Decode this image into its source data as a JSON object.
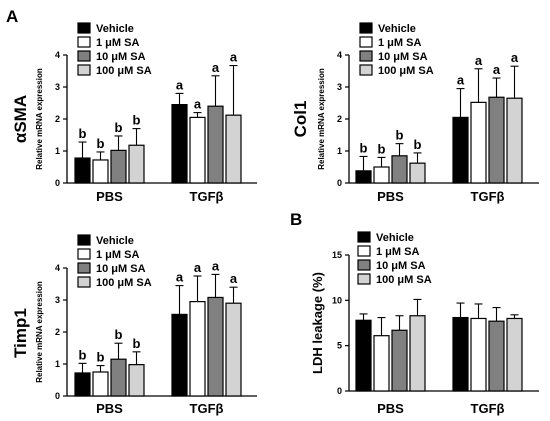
{
  "panel_labels": [
    "A",
    "B"
  ],
  "legend": {
    "items": [
      {
        "label": "Vehicle",
        "color": "#000000"
      },
      {
        "label": "1 μM SA",
        "color": "#ffffff"
      },
      {
        "label": "10 μM SA",
        "color": "#808080"
      },
      {
        "label": "100 μM SA",
        "color": "#d3d3d3"
      }
    ]
  },
  "chart_data": [
    {
      "panel": "A",
      "type": "bar",
      "gene_label": "αSMA",
      "ylabel": "Relative mRNA expression",
      "ylim": [
        0,
        4
      ],
      "yticks": [
        "0",
        "1",
        "2",
        "3",
        "4"
      ],
      "categories": [
        "PBS",
        "TGFβ"
      ],
      "series": [
        {
          "name": "Vehicle",
          "values": [
            0.78,
            2.45
          ],
          "errors": [
            0.5,
            0.35
          ],
          "sig": [
            "b",
            "a"
          ]
        },
        {
          "name": "1 μM SA",
          "values": [
            0.72,
            2.05
          ],
          "errors": [
            0.25,
            0.15
          ],
          "sig": [
            "b",
            "a"
          ]
        },
        {
          "name": "10 μM SA",
          "values": [
            1.02,
            2.4
          ],
          "errors": [
            0.45,
            0.95
          ],
          "sig": [
            "b",
            "a"
          ]
        },
        {
          "name": "100 μM SA",
          "values": [
            1.18,
            2.12
          ],
          "errors": [
            0.52,
            1.55
          ],
          "sig": [
            "b",
            "a"
          ]
        }
      ]
    },
    {
      "panel": "A",
      "type": "bar",
      "gene_label": "Col1",
      "ylabel": "Relative mRNA expression",
      "ylim": [
        0,
        4
      ],
      "yticks": [
        "0",
        "1",
        "2",
        "3",
        "4"
      ],
      "categories": [
        "PBS",
        "TGFβ"
      ],
      "series": [
        {
          "name": "Vehicle",
          "values": [
            0.38,
            2.05
          ],
          "errors": [
            0.45,
            0.9
          ],
          "sig": [
            "b",
            "a"
          ]
        },
        {
          "name": "1 μM SA",
          "values": [
            0.5,
            2.52
          ],
          "errors": [
            0.3,
            1.05
          ],
          "sig": [
            "b",
            "a"
          ]
        },
        {
          "name": "10 μM SA",
          "values": [
            0.85,
            2.68
          ],
          "errors": [
            0.38,
            0.6
          ],
          "sig": [
            "b",
            "a"
          ]
        },
        {
          "name": "100 μM SA",
          "values": [
            0.62,
            2.65
          ],
          "errors": [
            0.32,
            1.0
          ],
          "sig": [
            "b",
            "a"
          ]
        }
      ]
    },
    {
      "panel": "A",
      "type": "bar",
      "gene_label": "Timp1",
      "ylabel": "Relative mRNA expression",
      "ylim": [
        0,
        4
      ],
      "yticks": [
        "0",
        "1",
        "2",
        "3",
        "4"
      ],
      "categories": [
        "PBS",
        "TGFβ"
      ],
      "series": [
        {
          "name": "Vehicle",
          "values": [
            0.72,
            2.55
          ],
          "errors": [
            0.3,
            0.9
          ],
          "sig": [
            "b",
            "a"
          ]
        },
        {
          "name": "1 μM SA",
          "values": [
            0.75,
            2.95
          ],
          "errors": [
            0.2,
            0.8
          ],
          "sig": [
            "b",
            "a"
          ]
        },
        {
          "name": "10 μM SA",
          "values": [
            1.15,
            3.08
          ],
          "errors": [
            0.5,
            0.72
          ],
          "sig": [
            "b",
            "a"
          ]
        },
        {
          "name": "100 μM SA",
          "values": [
            0.98,
            2.9
          ],
          "errors": [
            0.4,
            0.5
          ],
          "sig": [
            "b",
            "a"
          ]
        }
      ]
    },
    {
      "panel": "B",
      "type": "bar",
      "gene_label": "",
      "ylabel": "LDH leakage (%)",
      "ylim": [
        0,
        15
      ],
      "yticks": [
        "0",
        "5",
        "10",
        "15"
      ],
      "categories": [
        "PBS",
        "TGFβ"
      ],
      "series": [
        {
          "name": "Vehicle",
          "values": [
            7.8,
            8.1
          ],
          "errors": [
            0.7,
            1.6
          ],
          "sig": [
            "",
            ""
          ]
        },
        {
          "name": "1 μM SA",
          "values": [
            6.1,
            8.0
          ],
          "errors": [
            2.0,
            1.6
          ],
          "sig": [
            "",
            ""
          ]
        },
        {
          "name": "10 μM SA",
          "values": [
            6.7,
            7.7
          ],
          "errors": [
            1.6,
            1.5
          ],
          "sig": [
            "",
            ""
          ]
        },
        {
          "name": "100 μM SA",
          "values": [
            8.3,
            8.0
          ],
          "errors": [
            1.8,
            0.4
          ],
          "sig": [
            "",
            ""
          ]
        }
      ]
    }
  ]
}
